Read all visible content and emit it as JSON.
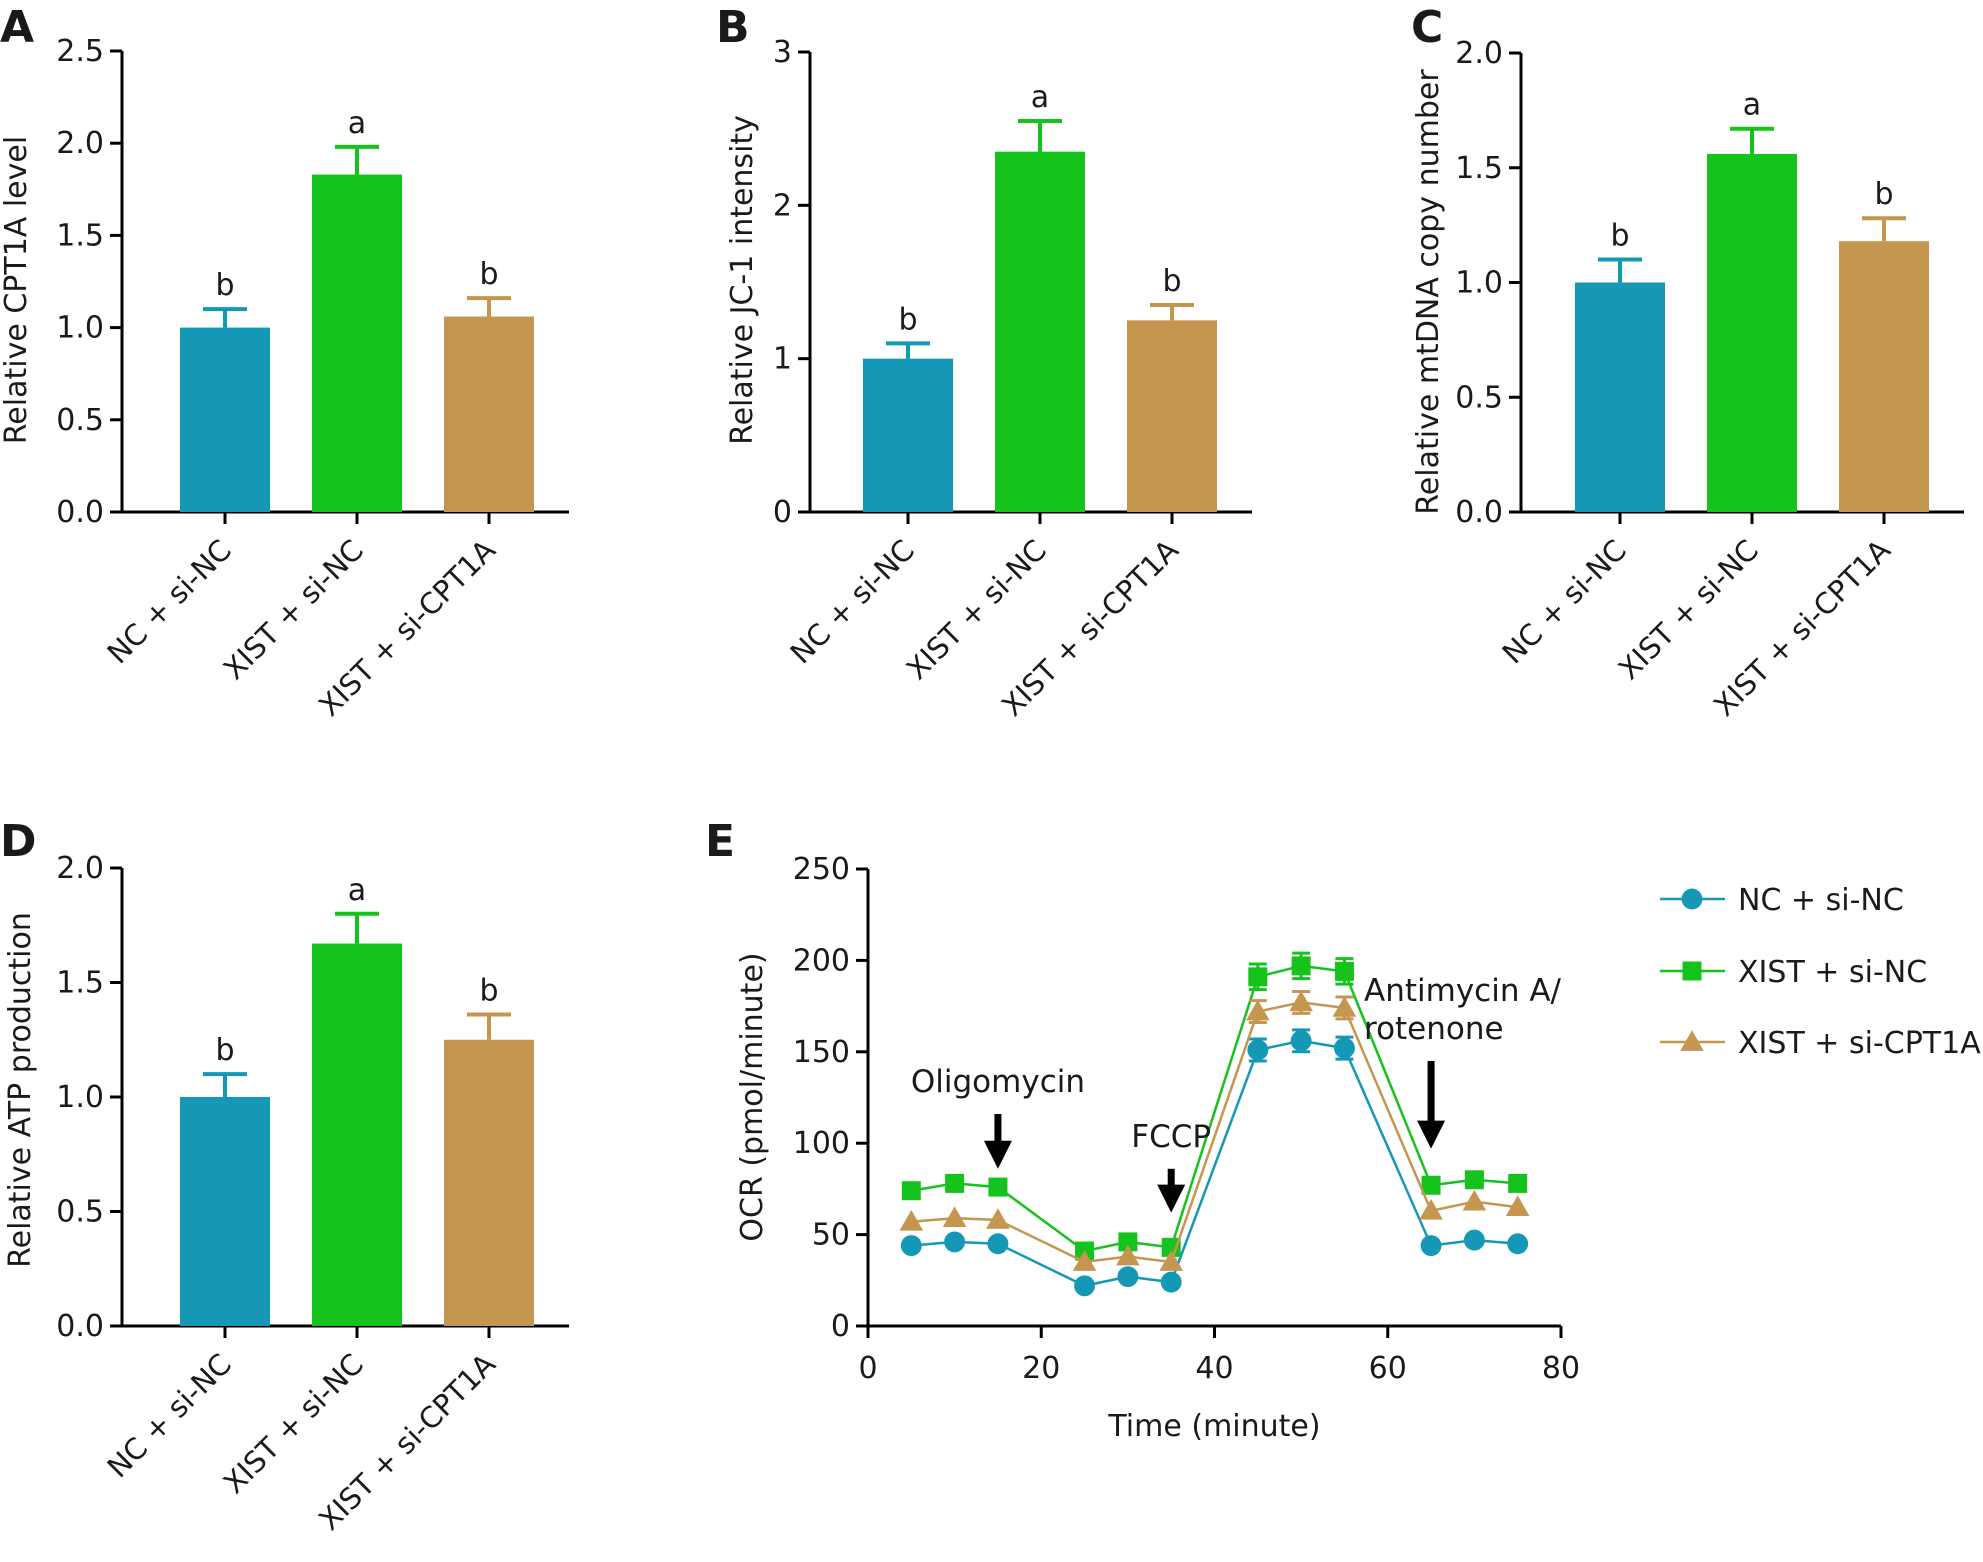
{
  "colors": {
    "nc": "#1598b5",
    "xist_si_nc": "#16c21c",
    "xist_si_cpt1a": "#c4964f"
  },
  "chart_data": [
    {
      "panel": "A",
      "type": "bar",
      "ylabel": "Relative CPT1A level",
      "categories": [
        "NC + si-NC",
        "XIST + si-NC",
        "XIST + si-CPT1A"
      ],
      "values": [
        1.0,
        1.83,
        1.06
      ],
      "errors": [
        0.1,
        0.15,
        0.1
      ],
      "significance": [
        "b",
        "a",
        "b"
      ],
      "ylim": [
        0,
        2.5
      ],
      "yticks": [
        "0.0",
        "0.5",
        "1.0",
        "1.5",
        "2.0",
        "2.5"
      ],
      "ytick_values": [
        0,
        0.5,
        1.0,
        1.5,
        2.0,
        2.5
      ]
    },
    {
      "panel": "B",
      "type": "bar",
      "ylabel": "Relative JC-1 intensity",
      "categories": [
        "NC + si-NC",
        "XIST + si-NC",
        "XIST + si-CPT1A"
      ],
      "values": [
        1.0,
        2.35,
        1.25
      ],
      "errors": [
        0.1,
        0.2,
        0.1
      ],
      "significance": [
        "b",
        "a",
        "b"
      ],
      "ylim": [
        0,
        3
      ],
      "yticks": [
        "0",
        "1",
        "2",
        "3"
      ],
      "ytick_values": [
        0,
        1,
        2,
        3
      ]
    },
    {
      "panel": "C",
      "type": "bar",
      "ylabel": "Relative mtDNA copy number",
      "categories": [
        "NC + si-NC",
        "XIST + si-NC",
        "XIST + si-CPT1A"
      ],
      "values": [
        1.0,
        1.56,
        1.18
      ],
      "errors": [
        0.1,
        0.11,
        0.1
      ],
      "significance": [
        "b",
        "a",
        "b"
      ],
      "ylim": [
        0,
        2.0
      ],
      "yticks": [
        "0.0",
        "0.5",
        "1.0",
        "1.5",
        "2.0"
      ],
      "ytick_values": [
        0,
        0.5,
        1.0,
        1.5,
        2.0
      ]
    },
    {
      "panel": "D",
      "type": "bar",
      "ylabel": "Relative ATP production",
      "categories": [
        "NC + si-NC",
        "XIST + si-NC",
        "XIST + si-CPT1A"
      ],
      "values": [
        1.0,
        1.67,
        1.25
      ],
      "errors": [
        0.1,
        0.13,
        0.11
      ],
      "significance": [
        "b",
        "a",
        "b"
      ],
      "ylim": [
        0,
        2.0
      ],
      "yticks": [
        "0.0",
        "0.5",
        "1.0",
        "1.5",
        "2.0"
      ],
      "ytick_values": [
        0,
        0.5,
        1.0,
        1.5,
        2.0
      ]
    },
    {
      "panel": "E",
      "type": "line",
      "xlabel": "Time (minute)",
      "ylabel": "OCR (pmol/minute)",
      "xlim": [
        0,
        80
      ],
      "ylim": [
        0,
        250
      ],
      "xticks": [
        "0",
        "20",
        "40",
        "60",
        "80"
      ],
      "xtick_values": [
        0,
        20,
        40,
        60,
        80
      ],
      "yticks": [
        "0",
        "50",
        "100",
        "150",
        "200",
        "250"
      ],
      "ytick_values": [
        0,
        50,
        100,
        150,
        200,
        250
      ],
      "x": [
        5,
        10,
        15,
        25,
        30,
        35,
        45,
        50,
        55,
        65,
        70,
        75
      ],
      "series": [
        {
          "name": "NC + si-NC",
          "marker": "circle",
          "color_key": "nc",
          "values": [
            44,
            46,
            45,
            22,
            27,
            24,
            151,
            156,
            152,
            44,
            47,
            45
          ],
          "errors": [
            0,
            0,
            0,
            0,
            0,
            0,
            6,
            6,
            6,
            0,
            0,
            0
          ]
        },
        {
          "name": "XIST + si-NC",
          "marker": "square",
          "color_key": "xist_si_nc",
          "values": [
            74,
            78,
            76,
            41,
            46,
            43,
            191,
            197,
            194,
            77,
            80,
            78
          ],
          "errors": [
            0,
            0,
            0,
            0,
            0,
            0,
            7,
            7,
            7,
            0,
            0,
            0
          ]
        },
        {
          "name": "XIST + si-CPT1A",
          "marker": "triangle",
          "color_key": "xist_si_cpt1a",
          "values": [
            57,
            59,
            58,
            35,
            38,
            35,
            172,
            177,
            174,
            63,
            68,
            65
          ],
          "errors": [
            0,
            0,
            0,
            0,
            0,
            0,
            6,
            6,
            6,
            0,
            0,
            0
          ]
        }
      ],
      "annotations": [
        {
          "lines": [
            "Oligomycin"
          ],
          "x": 15,
          "arrow_top": 116,
          "arrow_bottom": 86
        },
        {
          "lines": [
            "FCCP"
          ],
          "x": 35,
          "arrow_top": 86,
          "arrow_bottom": 62
        },
        {
          "lines": [
            "Antimycin A/",
            "rotenone"
          ],
          "x": 65,
          "arrow_top": 145,
          "arrow_bottom": 97
        }
      ]
    }
  ]
}
